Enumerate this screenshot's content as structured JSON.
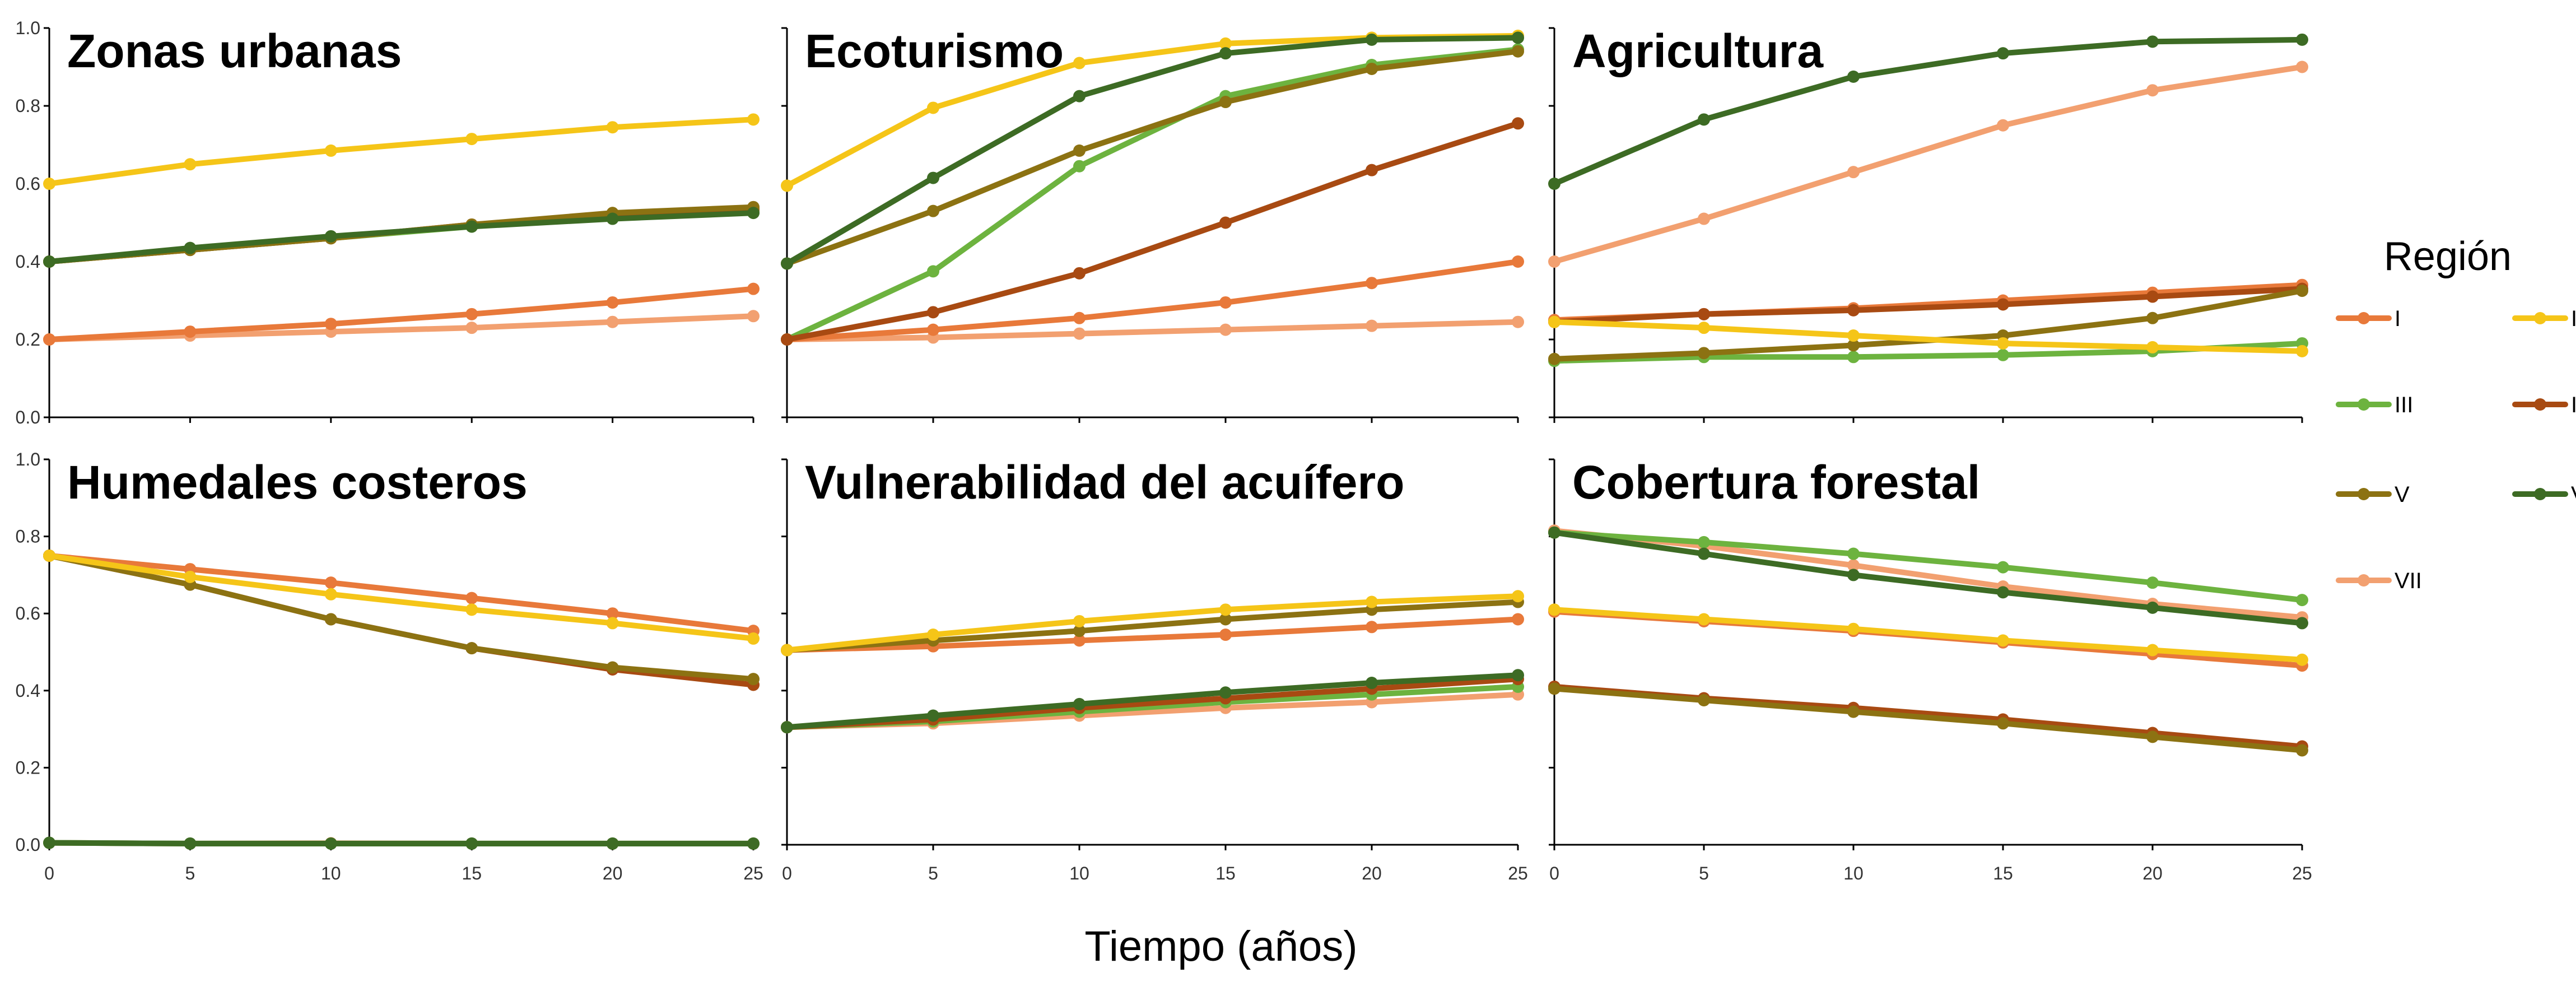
{
  "figure": {
    "xlabel": "Tiempo (años)",
    "legend_title": "Región",
    "legend_placement": "right"
  },
  "colors": {
    "I": "#e8793a",
    "II": "#f5c518",
    "III": "#6db33f",
    "IV": "#a84a12",
    "V": "#8c7212",
    "VI": "#3d6b24",
    "VII": "#f2a070"
  },
  "chart_data": [
    {
      "type": "line",
      "title": "Zonas urbanas",
      "x": [
        0,
        5,
        10,
        15,
        20,
        25
      ],
      "ylim": [
        0,
        1
      ],
      "yticks": [
        "0.0",
        "0.2",
        "0.4",
        "0.6",
        "0.8",
        "1.0"
      ],
      "xticks": [
        "0",
        "5",
        "10",
        "15",
        "20",
        "25"
      ],
      "series": [
        {
          "name": "I",
          "values": [
            0.2,
            0.22,
            0.24,
            0.265,
            0.295,
            0.33
          ]
        },
        {
          "name": "II",
          "values": [
            0.6,
            0.65,
            0.685,
            0.715,
            0.745,
            0.765
          ]
        },
        {
          "name": "III",
          "values": [
            0.4,
            0.43,
            0.46,
            0.49,
            0.515,
            0.53
          ]
        },
        {
          "name": "IV",
          "values": [
            0.4,
            0.43,
            0.46,
            0.495,
            0.52,
            0.535
          ]
        },
        {
          "name": "V",
          "values": [
            0.4,
            0.43,
            0.46,
            0.495,
            0.525,
            0.54
          ]
        },
        {
          "name": "VI",
          "values": [
            0.4,
            0.435,
            0.465,
            0.49,
            0.51,
            0.525
          ]
        },
        {
          "name": "VII",
          "values": [
            0.2,
            0.21,
            0.22,
            0.23,
            0.245,
            0.26
          ]
        }
      ]
    },
    {
      "type": "line",
      "title": "Ecoturismo",
      "x": [
        0,
        5,
        10,
        15,
        20,
        25
      ],
      "ylim": [
        0,
        1
      ],
      "yticks": [
        "0.0",
        "0.2",
        "0.4",
        "0.6",
        "0.8",
        "1.0"
      ],
      "xticks": [
        "0",
        "5",
        "10",
        "15",
        "20",
        "25"
      ],
      "series": [
        {
          "name": "I",
          "values": [
            0.2,
            0.225,
            0.255,
            0.295,
            0.345,
            0.4
          ]
        },
        {
          "name": "II",
          "values": [
            0.595,
            0.795,
            0.91,
            0.96,
            0.975,
            0.98
          ]
        },
        {
          "name": "III",
          "values": [
            0.2,
            0.375,
            0.645,
            0.825,
            0.905,
            0.945
          ]
        },
        {
          "name": "IV",
          "values": [
            0.2,
            0.27,
            0.37,
            0.5,
            0.635,
            0.755
          ]
        },
        {
          "name": "V",
          "values": [
            0.395,
            0.53,
            0.685,
            0.81,
            0.895,
            0.94
          ]
        },
        {
          "name": "VI",
          "values": [
            0.395,
            0.615,
            0.825,
            0.935,
            0.97,
            0.975
          ]
        },
        {
          "name": "VII",
          "values": [
            0.2,
            0.205,
            0.215,
            0.225,
            0.235,
            0.245
          ]
        }
      ]
    },
    {
      "type": "line",
      "title": "Agricultura",
      "x": [
        0,
        5,
        10,
        15,
        20,
        25
      ],
      "ylim": [
        0,
        1
      ],
      "yticks": [
        "0.0",
        "0.2",
        "0.4",
        "0.6",
        "0.8",
        "1.0"
      ],
      "xticks": [
        "0",
        "5",
        "10",
        "15",
        "20",
        "25"
      ],
      "series": [
        {
          "name": "I",
          "values": [
            0.25,
            0.265,
            0.28,
            0.3,
            0.32,
            0.34
          ]
        },
        {
          "name": "II",
          "values": [
            0.245,
            0.23,
            0.21,
            0.19,
            0.18,
            0.17
          ]
        },
        {
          "name": "III",
          "values": [
            0.145,
            0.155,
            0.155,
            0.16,
            0.17,
            0.19
          ]
        },
        {
          "name": "IV",
          "values": [
            0.245,
            0.265,
            0.275,
            0.29,
            0.31,
            0.33
          ]
        },
        {
          "name": "V",
          "values": [
            0.15,
            0.165,
            0.185,
            0.21,
            0.255,
            0.325
          ]
        },
        {
          "name": "VI",
          "values": [
            0.6,
            0.765,
            0.875,
            0.935,
            0.965,
            0.97
          ]
        },
        {
          "name": "VII",
          "values": [
            0.4,
            0.51,
            0.63,
            0.75,
            0.84,
            0.9
          ]
        }
      ]
    },
    {
      "type": "line",
      "title": "Humedales costeros",
      "x": [
        0,
        5,
        10,
        15,
        20,
        25
      ],
      "ylim": [
        0,
        1
      ],
      "yticks": [
        "0.0",
        "0.2",
        "0.4",
        "0.6",
        "0.8",
        "1.0"
      ],
      "xticks": [
        "0",
        "5",
        "10",
        "15",
        "20",
        "25"
      ],
      "series": [
        {
          "name": "I",
          "values": [
            0.75,
            0.715,
            0.68,
            0.64,
            0.6,
            0.555
          ]
        },
        {
          "name": "II",
          "values": [
            0.75,
            0.695,
            0.65,
            0.61,
            0.575,
            0.535
          ]
        },
        {
          "name": "III",
          "values": [
            0.005,
            0.003,
            0.003,
            0.003,
            0.003,
            0.003
          ]
        },
        {
          "name": "IV",
          "values": [
            0.75,
            0.675,
            0.585,
            0.51,
            0.455,
            0.415
          ]
        },
        {
          "name": "V",
          "values": [
            0.75,
            0.675,
            0.585,
            0.51,
            0.46,
            0.43
          ]
        },
        {
          "name": "VI",
          "values": [
            0.005,
            0.003,
            0.003,
            0.003,
            0.003,
            0.003
          ]
        },
        {
          "name": "VII",
          "values": [
            0.005,
            0.003,
            0.004,
            0.003,
            0.003,
            0.003
          ]
        }
      ]
    },
    {
      "type": "line",
      "title": "Vulnerabilidad del acuífero",
      "x": [
        0,
        5,
        10,
        15,
        20,
        25
      ],
      "ylim": [
        0,
        1
      ],
      "yticks": [
        "0.0",
        "0.2",
        "0.4",
        "0.6",
        "0.8",
        "1.0"
      ],
      "xticks": [
        "0",
        "5",
        "10",
        "15",
        "20",
        "25"
      ],
      "series": [
        {
          "name": "I",
          "values": [
            0.505,
            0.515,
            0.53,
            0.545,
            0.565,
            0.585
          ]
        },
        {
          "name": "II",
          "values": [
            0.505,
            0.545,
            0.58,
            0.61,
            0.63,
            0.645
          ]
        },
        {
          "name": "III",
          "values": [
            0.305,
            0.32,
            0.345,
            0.37,
            0.39,
            0.41
          ]
        },
        {
          "name": "IV",
          "values": [
            0.305,
            0.325,
            0.355,
            0.38,
            0.405,
            0.43
          ]
        },
        {
          "name": "V",
          "values": [
            0.505,
            0.53,
            0.555,
            0.585,
            0.61,
            0.63
          ]
        },
        {
          "name": "VI",
          "values": [
            0.305,
            0.335,
            0.365,
            0.395,
            0.42,
            0.44
          ]
        },
        {
          "name": "VII",
          "values": [
            0.305,
            0.315,
            0.335,
            0.355,
            0.37,
            0.39
          ]
        }
      ]
    },
    {
      "type": "line",
      "title": "Cobertura forestal",
      "x": [
        0,
        5,
        10,
        15,
        20,
        25
      ],
      "ylim": [
        0,
        1
      ],
      "yticks": [
        "0.0",
        "0.2",
        "0.4",
        "0.6",
        "0.8",
        "1.0"
      ],
      "xticks": [
        "0",
        "5",
        "10",
        "15",
        "20",
        "25"
      ],
      "series": [
        {
          "name": "I",
          "values": [
            0.605,
            0.58,
            0.555,
            0.525,
            0.495,
            0.465
          ]
        },
        {
          "name": "II",
          "values": [
            0.61,
            0.585,
            0.56,
            0.53,
            0.505,
            0.48
          ]
        },
        {
          "name": "III",
          "values": [
            0.81,
            0.785,
            0.755,
            0.72,
            0.68,
            0.635
          ]
        },
        {
          "name": "IV",
          "values": [
            0.41,
            0.38,
            0.355,
            0.325,
            0.29,
            0.255
          ]
        },
        {
          "name": "V",
          "values": [
            0.405,
            0.375,
            0.345,
            0.315,
            0.28,
            0.245
          ]
        },
        {
          "name": "VI",
          "values": [
            0.81,
            0.755,
            0.7,
            0.655,
            0.615,
            0.575
          ]
        },
        {
          "name": "VII",
          "values": [
            0.815,
            0.775,
            0.725,
            0.67,
            0.625,
            0.59
          ]
        }
      ]
    }
  ]
}
